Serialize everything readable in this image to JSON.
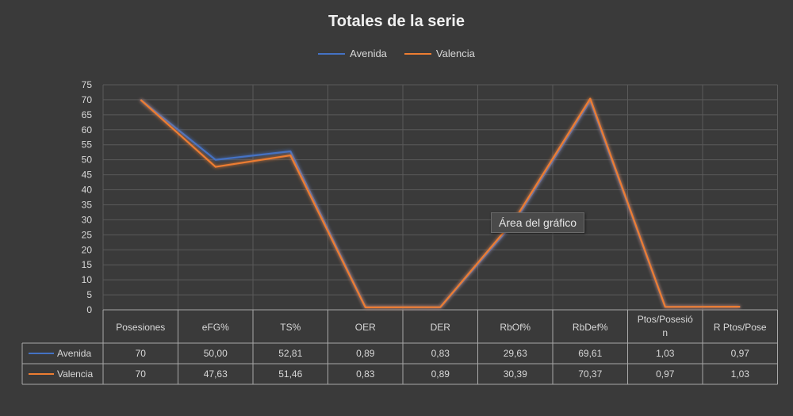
{
  "tooltip": "Área del gráfico",
  "chart_data": {
    "type": "line",
    "title": "Totales de la serie",
    "categories": [
      "Posesiones",
      "eFG%",
      "TS%",
      "OER",
      "DER",
      "RbOf%",
      "RbDef%",
      "Ptos/Posesió n",
      "R Ptos/Pose"
    ],
    "ylim": [
      0,
      75
    ],
    "yticks": [
      0,
      5,
      10,
      15,
      20,
      25,
      30,
      35,
      40,
      45,
      50,
      55,
      60,
      65,
      70,
      75
    ],
    "grid": true,
    "legend_position": "top",
    "series": [
      {
        "name": "Avenida",
        "color": "#4472c4",
        "values": [
          70,
          50.0,
          52.81,
          0.89,
          0.83,
          29.63,
          69.61,
          1.03,
          0.97
        ],
        "labels": [
          "70",
          "50,00",
          "52,81",
          "0,89",
          "0,83",
          "29,63",
          "69,61",
          "1,03",
          "0,97"
        ]
      },
      {
        "name": "Valencia",
        "color": "#ed7d31",
        "values": [
          70,
          47.63,
          51.46,
          0.83,
          0.89,
          30.39,
          70.37,
          0.97,
          1.03
        ],
        "labels": [
          "70",
          "47,63",
          "51,46",
          "0,83",
          "0,89",
          "30,39",
          "70,37",
          "0,97",
          "1,03"
        ]
      }
    ]
  }
}
